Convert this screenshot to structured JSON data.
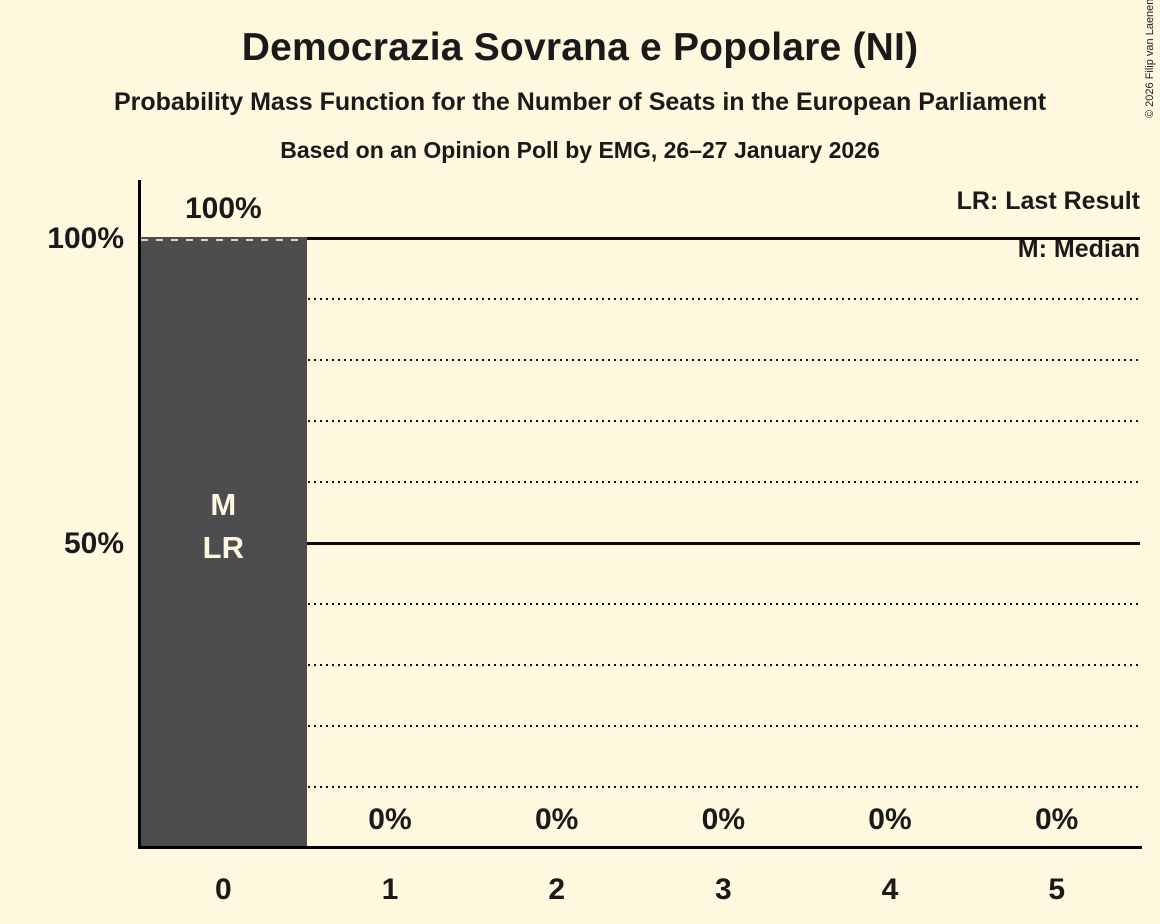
{
  "header": {
    "title": "Democrazia Sovrana e Popolare (NI)",
    "subtitle": "Probability Mass Function for the Number of Seats in the European Parliament",
    "poll_line": "Based on an Opinion Poll by EMG, 26–27 January 2026",
    "copyright": "© 2026 Filip van Laenen"
  },
  "legend": {
    "last_result": "LR: Last Result",
    "median": "M: Median"
  },
  "colors": {
    "background": "#FDF8DE",
    "bar": "#4D4D4F",
    "bar_label": "#FDF8DE",
    "text": "#1A1A1A",
    "line": "#000000"
  },
  "chart_data": {
    "type": "bar",
    "title": "Democrazia Sovrana e Popolare (NI)",
    "categories": [
      "0",
      "1",
      "2",
      "3",
      "4",
      "5"
    ],
    "values": [
      100,
      0,
      0,
      0,
      0,
      0
    ],
    "value_labels": [
      "100%",
      "0%",
      "0%",
      "0%",
      "0%",
      "0%"
    ],
    "ylim": [
      0,
      100
    ],
    "grid": "horizontal",
    "legend_position": "top-right",
    "y_ticks": [
      {
        "pct": 100,
        "label": "100%"
      },
      {
        "pct": 50,
        "label": "50%"
      }
    ],
    "solid_gridlines_pct": [
      100,
      50
    ],
    "dotted_gridlines_pct": [
      90,
      80,
      70,
      60,
      40,
      30,
      20,
      10
    ],
    "median_seat": "0",
    "last_result_seat": "0",
    "bar_markers": [
      {
        "seat_index": 0,
        "lines": [
          "M",
          "LR"
        ]
      }
    ],
    "last_result_line": {
      "seat_index": 0,
      "pct": 100
    }
  }
}
